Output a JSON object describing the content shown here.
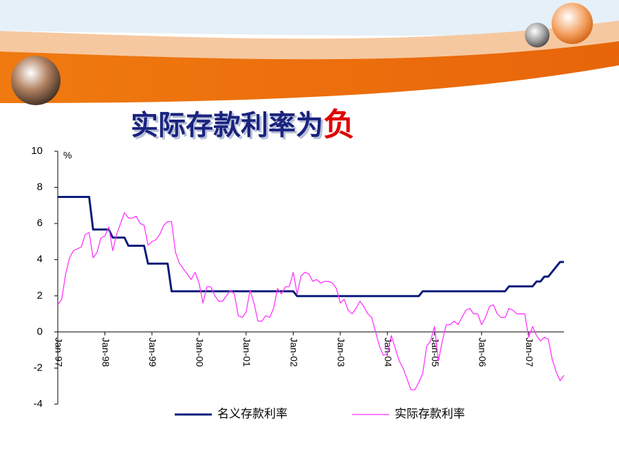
{
  "chart_data": {
    "type": "line",
    "title": "实际存款利率为",
    "title_highlight": "负",
    "y_unit": "%",
    "categories": [
      "Jan-97",
      null,
      null,
      null,
      null,
      null,
      null,
      null,
      null,
      null,
      null,
      null,
      "Jan-98",
      null,
      null,
      null,
      null,
      null,
      null,
      null,
      null,
      null,
      null,
      null,
      "Jan-99",
      null,
      null,
      null,
      null,
      null,
      null,
      null,
      null,
      null,
      null,
      null,
      "Jan-00",
      null,
      null,
      null,
      null,
      null,
      null,
      null,
      null,
      null,
      null,
      null,
      "Jan-01",
      null,
      null,
      null,
      null,
      null,
      null,
      null,
      null,
      null,
      null,
      null,
      "Jan-02",
      null,
      null,
      null,
      null,
      null,
      null,
      null,
      null,
      null,
      null,
      null,
      "Jan-03",
      null,
      null,
      null,
      null,
      null,
      null,
      null,
      null,
      null,
      null,
      null,
      "Jan-04",
      null,
      null,
      null,
      null,
      null,
      null,
      null,
      null,
      null,
      null,
      null,
      "Jan-05",
      null,
      null,
      null,
      null,
      null,
      null,
      null,
      null,
      null,
      null,
      null,
      "Jan-06",
      null,
      null,
      null,
      null,
      null,
      null,
      null,
      null,
      null,
      null,
      null,
      "Jan-07",
      null,
      null,
      null,
      null,
      null,
      null,
      null,
      null,
      null
    ],
    "series": [
      {
        "name": "名义存款利率",
        "color": "#0a1a7a",
        "width": 3,
        "values": [
          7.47,
          7.47,
          7.47,
          7.47,
          7.47,
          7.47,
          7.47,
          7.47,
          7.47,
          5.67,
          5.67,
          5.67,
          5.67,
          5.67,
          5.22,
          5.22,
          5.22,
          5.22,
          4.77,
          4.77,
          4.77,
          4.77,
          4.77,
          3.78,
          3.78,
          3.78,
          3.78,
          3.78,
          3.78,
          2.25,
          2.25,
          2.25,
          2.25,
          2.25,
          2.25,
          2.25,
          2.25,
          2.25,
          2.25,
          2.25,
          2.25,
          2.25,
          2.25,
          2.25,
          2.25,
          2.25,
          2.25,
          2.25,
          2.25,
          2.25,
          2.25,
          2.25,
          2.25,
          2.25,
          2.25,
          2.25,
          2.25,
          2.25,
          2.25,
          2.25,
          2.25,
          1.98,
          1.98,
          1.98,
          1.98,
          1.98,
          1.98,
          1.98,
          1.98,
          1.98,
          1.98,
          1.98,
          1.98,
          1.98,
          1.98,
          1.98,
          1.98,
          1.98,
          1.98,
          1.98,
          1.98,
          1.98,
          1.98,
          1.98,
          1.98,
          1.98,
          1.98,
          1.98,
          1.98,
          1.98,
          1.98,
          1.98,
          1.98,
          2.25,
          2.25,
          2.25,
          2.25,
          2.25,
          2.25,
          2.25,
          2.25,
          2.25,
          2.25,
          2.25,
          2.25,
          2.25,
          2.25,
          2.25,
          2.25,
          2.25,
          2.25,
          2.25,
          2.25,
          2.25,
          2.25,
          2.52,
          2.52,
          2.52,
          2.52,
          2.52,
          2.52,
          2.52,
          2.79,
          2.79,
          3.06,
          3.06,
          3.33,
          3.6,
          3.87,
          3.87
        ]
      },
      {
        "name": "实际存款利率",
        "color": "#ff33ff",
        "width": 1.3,
        "values": [
          1.5,
          1.8,
          3.2,
          4.1,
          4.5,
          4.6,
          4.7,
          5.4,
          5.5,
          4.1,
          4.4,
          5.2,
          5.3,
          5.8,
          4.5,
          5.4,
          6.0,
          6.6,
          6.3,
          6.3,
          6.4,
          6.0,
          5.9,
          4.8,
          5.0,
          5.1,
          5.4,
          5.9,
          6.1,
          6.1,
          4.4,
          3.8,
          3.5,
          3.2,
          2.9,
          3.3,
          2.7,
          1.6,
          2.5,
          2.5,
          2.0,
          1.7,
          1.7,
          2.0,
          2.3,
          2.1,
          0.9,
          0.8,
          1.1,
          2.3,
          1.6,
          0.6,
          0.6,
          0.9,
          0.8,
          1.3,
          2.4,
          2.1,
          2.5,
          2.5,
          3.3,
          2.1,
          3.1,
          3.3,
          3.2,
          2.8,
          2.9,
          2.7,
          2.8,
          2.8,
          2.7,
          2.4,
          1.6,
          1.8,
          1.2,
          1.0,
          1.3,
          1.7,
          1.4,
          1.0,
          0.8,
          0,
          -0.8,
          -1.3,
          -1.2,
          -0.2,
          -0.9,
          -1.6,
          -2.0,
          -2.6,
          -3.2,
          -3.2,
          -2.8,
          -2.3,
          -0.8,
          -0.5,
          0.3,
          -1.6,
          -0.5,
          0.4,
          0.4,
          0.6,
          0.4,
          0.8,
          1.2,
          1.3,
          1.0,
          1.0,
          0.4,
          0.8,
          1.4,
          1.5,
          1.0,
          0.8,
          0.8,
          1.3,
          1.2,
          1.0,
          1.0,
          1.0,
          -0.3,
          0.3,
          -0.2,
          -0.5,
          -0.3,
          -0.4,
          -1.5,
          -2.2,
          -2.7,
          -2.4
        ]
      }
    ],
    "ylim": [
      -4,
      10
    ],
    "yticks": [
      -4,
      -2,
      0,
      2,
      4,
      6,
      8,
      10
    ],
    "legend": "bottom"
  }
}
